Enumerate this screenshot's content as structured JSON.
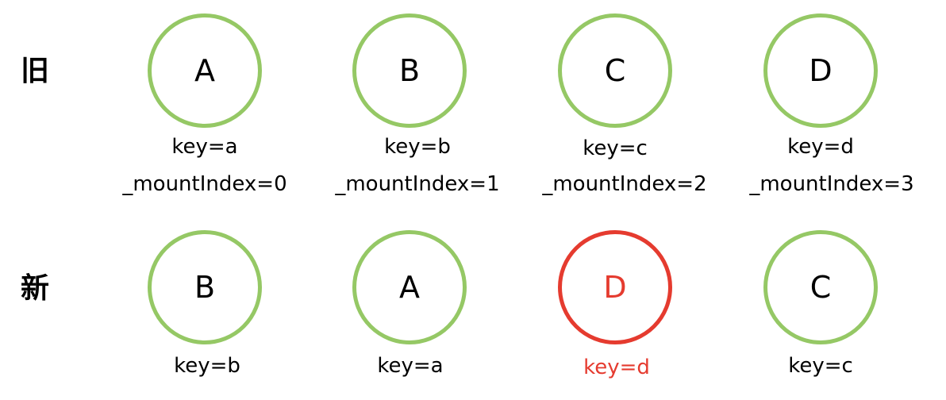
{
  "rows": [
    {
      "label": "旧",
      "nodes": [
        {
          "letter": "A",
          "key": "key=a",
          "mount": "_mountIndex=0",
          "is_new": false
        },
        {
          "letter": "B",
          "key": "key=b",
          "mount": "_mountIndex=1",
          "is_new": false
        },
        {
          "letter": "C",
          "key": "key=c",
          "mount": "_mountIndex=2",
          "is_new": false
        },
        {
          "letter": "D",
          "key": "key=d",
          "mount": "_mountIndex=3",
          "is_new": false
        }
      ]
    },
    {
      "label": "新",
      "nodes": [
        {
          "letter": "B",
          "key": "key=b",
          "is_new": false
        },
        {
          "letter": "A",
          "key": "key=a",
          "is_new": false
        },
        {
          "letter": "D",
          "key": "key=d",
          "is_new": true
        },
        {
          "letter": "C",
          "key": "key=c",
          "is_new": false
        }
      ]
    }
  ],
  "colors": {
    "existing_node": "#95c865",
    "new_node": "#e53b2f",
    "text": "#000000"
  }
}
